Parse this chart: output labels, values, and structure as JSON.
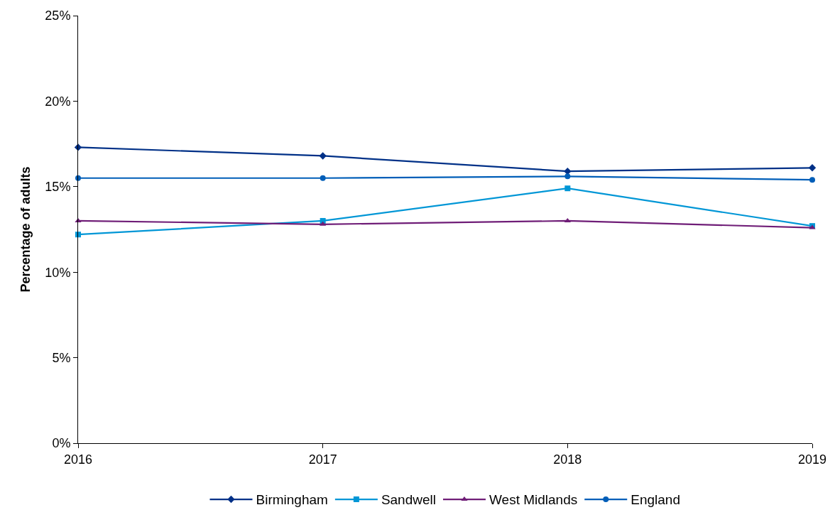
{
  "chart_data": {
    "type": "line",
    "ylabel": "Percentage of adults",
    "x": [
      2016,
      2017,
      2018,
      2019
    ],
    "xlim": [
      2016,
      2019
    ],
    "xticks": [
      2016,
      2017,
      2018,
      2019
    ],
    "ylim": [
      0,
      25
    ],
    "yticks": [
      {
        "value": 0,
        "label": "0%"
      },
      {
        "value": 5,
        "label": "5%"
      },
      {
        "value": 10,
        "label": "10%"
      },
      {
        "value": 15,
        "label": "15%"
      },
      {
        "value": 20,
        "label": "20%"
      },
      {
        "value": 25,
        "label": "25%"
      }
    ],
    "grid": false,
    "legend": "bottom",
    "series": [
      {
        "name": "Birmingham",
        "color": "#003087",
        "marker": "diamond",
        "values": [
          17.3,
          16.8,
          15.9,
          16.1
        ]
      },
      {
        "name": "Sandwell",
        "color": "#0096d6",
        "marker": "square",
        "values": [
          12.2,
          13.0,
          14.9,
          12.7
        ]
      },
      {
        "name": "West Midlands",
        "color": "#6f1d77",
        "marker": "triangle",
        "values": [
          13.0,
          12.8,
          13.0,
          12.6
        ]
      },
      {
        "name": "England",
        "color": "#005eb8",
        "marker": "circle",
        "values": [
          15.5,
          15.5,
          15.6,
          15.4
        ]
      }
    ]
  }
}
